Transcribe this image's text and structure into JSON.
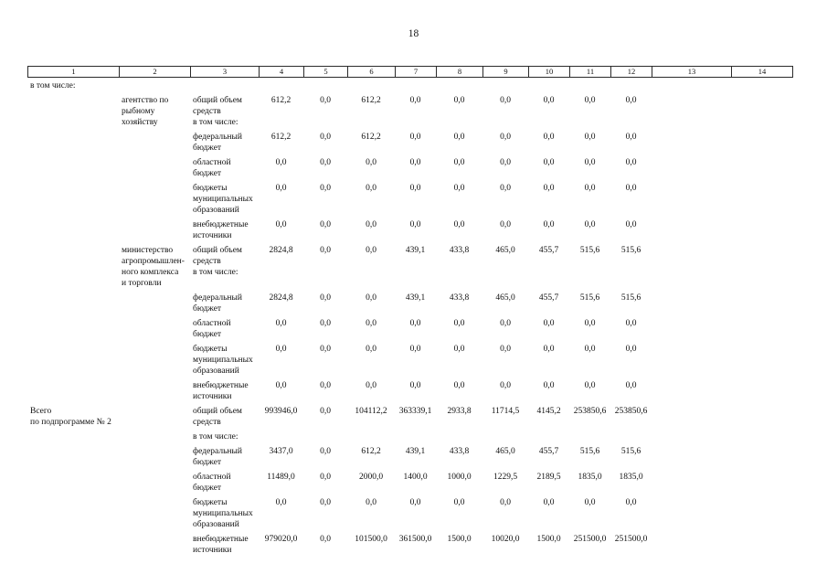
{
  "page": {
    "number": "18"
  },
  "table": {
    "header_columns": [
      "1",
      "2",
      "3",
      "4",
      "5",
      "6",
      "7",
      "8",
      "9",
      "10",
      "11",
      "12",
      "13",
      "14"
    ],
    "labels": {
      "in_total": "в том числе:",
      "total_line": "Всего\nпо подпрограмме № 2"
    },
    "rows": [
      {
        "col1": "в том числе:",
        "values": []
      },
      {
        "col2": "агентство по\nрыбному\nхозяйству",
        "col3": "общий объем\nсредств\nв том числе:",
        "values": [
          "612,2",
          "0,0",
          "612,2",
          "0,0",
          "0,0",
          "0,0",
          "0,0",
          "0,0",
          "0,0"
        ]
      },
      {
        "col3": "федеральный\nбюджет",
        "values": [
          "612,2",
          "0,0",
          "612,2",
          "0,0",
          "0,0",
          "0,0",
          "0,0",
          "0,0",
          "0,0"
        ]
      },
      {
        "col3": "областной\nбюджет",
        "values": [
          "0,0",
          "0,0",
          "0,0",
          "0,0",
          "0,0",
          "0,0",
          "0,0",
          "0,0",
          "0,0"
        ]
      },
      {
        "col3": "бюджеты\nмуниципальных\nобразований",
        "values": [
          "0,0",
          "0,0",
          "0,0",
          "0,0",
          "0,0",
          "0,0",
          "0,0",
          "0,0",
          "0,0"
        ]
      },
      {
        "col3": "внебюджетные\nисточники",
        "values": [
          "0,0",
          "0,0",
          "0,0",
          "0,0",
          "0,0",
          "0,0",
          "0,0",
          "0,0",
          "0,0"
        ]
      },
      {
        "col2": "министерство\nагропромышлен-\nного комплекса\nи торговли",
        "col3": "общий объем\nсредств\nв том числе:",
        "values": [
          "2824,8",
          "0,0",
          "0,0",
          "439,1",
          "433,8",
          "465,0",
          "455,7",
          "515,6",
          "515,6"
        ]
      },
      {
        "col3": "федеральный\nбюджет",
        "values": [
          "2824,8",
          "0,0",
          "0,0",
          "439,1",
          "433,8",
          "465,0",
          "455,7",
          "515,6",
          "515,6"
        ]
      },
      {
        "col3": "областной\nбюджет",
        "values": [
          "0,0",
          "0,0",
          "0,0",
          "0,0",
          "0,0",
          "0,0",
          "0,0",
          "0,0",
          "0,0"
        ]
      },
      {
        "col3": "бюджеты\nмуниципальных\nобразований",
        "values": [
          "0,0",
          "0,0",
          "0,0",
          "0,0",
          "0,0",
          "0,0",
          "0,0",
          "0,0",
          "0,0"
        ]
      },
      {
        "col3": "внебюджетные\nисточники",
        "values": [
          "0,0",
          "0,0",
          "0,0",
          "0,0",
          "0,0",
          "0,0",
          "0,0",
          "0,0",
          "0,0"
        ]
      },
      {
        "col1": "Всего\nпо подпрограмме № 2",
        "col3": "общий объем\nсредств",
        "values": [
          "993946,0",
          "0,0",
          "104112,2",
          "363339,1",
          "2933,8",
          "11714,5",
          "4145,2",
          "253850,6",
          "253850,6"
        ]
      },
      {
        "col3": "в том числе:",
        "values": []
      },
      {
        "col3": "федеральный\nбюджет",
        "values": [
          "3437,0",
          "0,0",
          "612,2",
          "439,1",
          "433,8",
          "465,0",
          "455,7",
          "515,6",
          "515,6"
        ]
      },
      {
        "col3": "областной\nбюджет",
        "values": [
          "11489,0",
          "0,0",
          "2000,0",
          "1400,0",
          "1000,0",
          "1229,5",
          "2189,5",
          "1835,0",
          "1835,0"
        ]
      },
      {
        "col3": "бюджеты\nмуниципальных\nобразований",
        "values": [
          "0,0",
          "0,0",
          "0,0",
          "0,0",
          "0,0",
          "0,0",
          "0,0",
          "0,0",
          "0,0"
        ]
      },
      {
        "col3": "внебюджетные\nисточники",
        "values": [
          "979020,0",
          "0,0",
          "101500,0",
          "361500,0",
          "1500,0",
          "10020,0",
          "1500,0",
          "251500,0",
          "251500,0"
        ]
      }
    ]
  }
}
